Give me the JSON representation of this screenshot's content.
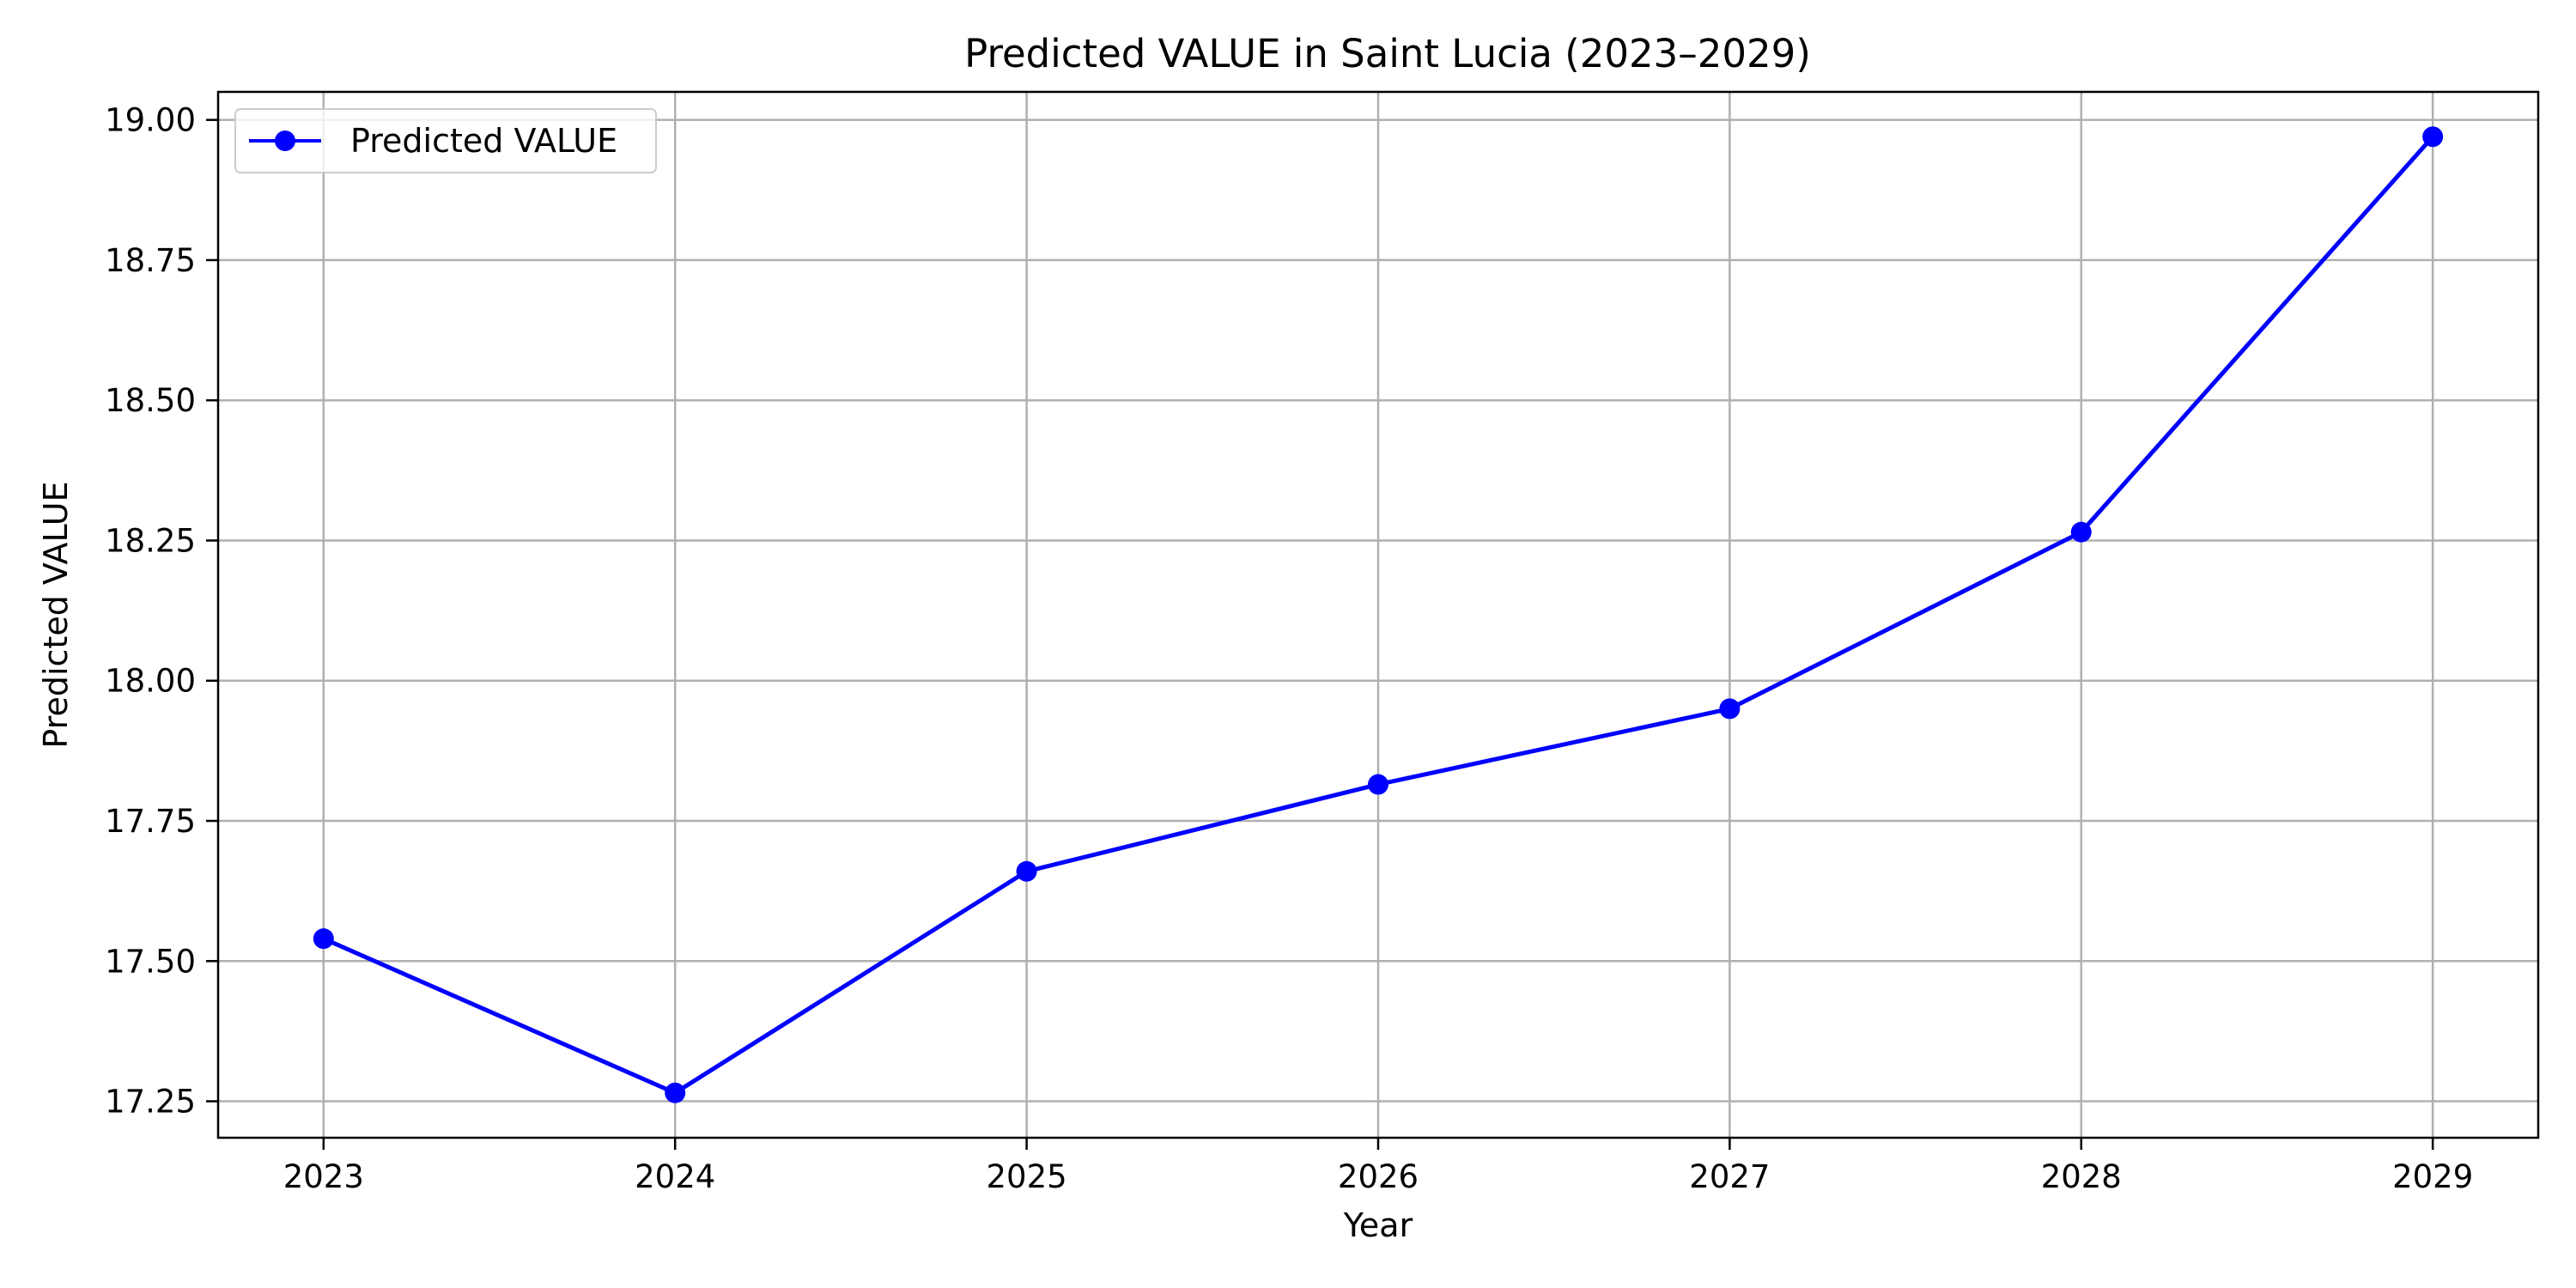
{
  "chart_data": {
    "type": "line",
    "title": "Predicted VALUE in Saint Lucia (2023–2029)",
    "xlabel": "Year",
    "ylabel": "Predicted VALUE",
    "x": [
      2023,
      2024,
      2025,
      2026,
      2027,
      2028,
      2029
    ],
    "x_tick_labels": [
      "2023",
      "2024",
      "2025",
      "2026",
      "2027",
      "2028",
      "2029"
    ],
    "y_ticks": [
      17.25,
      17.5,
      17.75,
      18.0,
      18.25,
      18.5,
      18.75,
      19.0
    ],
    "y_tick_labels": [
      "17.25",
      "17.50",
      "17.75",
      "18.00",
      "18.25",
      "18.50",
      "18.75",
      "19.00"
    ],
    "xlim": [
      2022.7,
      2029.3
    ],
    "ylim": [
      17.185,
      19.05
    ],
    "grid": true,
    "legend_position": "upper-left",
    "series": [
      {
        "name": "Predicted VALUE",
        "color": "#0000ff",
        "marker": "circle",
        "values": [
          17.54,
          17.265,
          17.66,
          17.815,
          17.95,
          18.265,
          18.97
        ]
      }
    ]
  }
}
